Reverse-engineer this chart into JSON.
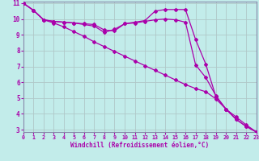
{
  "xlabel": "Windchill (Refroidissement éolien,°C)",
  "bg_color": "#c2ecea",
  "grid_color": "#b0c8c8",
  "line_color": "#aa00aa",
  "spine_color": "#8888aa",
  "x_min": 0,
  "x_max": 23,
  "y_min": 3,
  "y_max": 11,
  "line1_x": [
    0,
    1,
    2,
    3,
    4,
    5,
    6,
    7,
    8,
    9,
    10,
    11,
    12,
    13,
    14,
    15,
    16,
    17,
    18,
    19,
    20,
    21,
    22,
    23
  ],
  "line1_y": [
    11.0,
    10.55,
    9.95,
    9.85,
    9.8,
    9.75,
    9.7,
    9.65,
    9.3,
    9.25,
    9.7,
    9.8,
    9.9,
    10.5,
    10.6,
    10.6,
    10.6,
    8.7,
    7.15,
    5.1,
    4.3,
    3.65,
    3.2,
    2.85
  ],
  "line2_x": [
    0,
    1,
    2,
    3,
    4,
    5,
    6,
    7,
    8,
    9,
    10,
    11,
    12,
    13,
    14,
    15,
    16,
    17,
    18,
    19,
    20,
    21,
    22,
    23
  ],
  "line2_y": [
    11.0,
    10.55,
    9.95,
    9.85,
    9.8,
    9.75,
    9.65,
    9.55,
    9.15,
    9.35,
    9.7,
    9.75,
    9.85,
    9.95,
    10.0,
    9.95,
    9.8,
    7.1,
    6.3,
    5.15,
    4.3,
    3.65,
    3.2,
    2.85
  ],
  "line3_x": [
    0,
    1,
    2,
    3,
    4,
    5,
    6,
    7,
    8,
    9,
    10,
    11,
    12,
    13,
    14,
    15,
    16,
    17,
    18,
    19,
    20,
    21,
    22,
    23
  ],
  "line3_y": [
    11.0,
    10.55,
    9.95,
    9.75,
    9.5,
    9.2,
    8.9,
    8.55,
    8.25,
    7.95,
    7.65,
    7.35,
    7.05,
    6.75,
    6.45,
    6.15,
    5.85,
    5.6,
    5.4,
    4.95,
    4.3,
    3.8,
    3.3,
    2.85
  ],
  "yticks": [
    3,
    4,
    5,
    6,
    7,
    8,
    9,
    10,
    11
  ],
  "xticks": [
    0,
    1,
    2,
    3,
    4,
    5,
    6,
    7,
    8,
    9,
    10,
    11,
    12,
    13,
    14,
    15,
    16,
    17,
    18,
    19,
    20,
    21,
    22,
    23
  ]
}
